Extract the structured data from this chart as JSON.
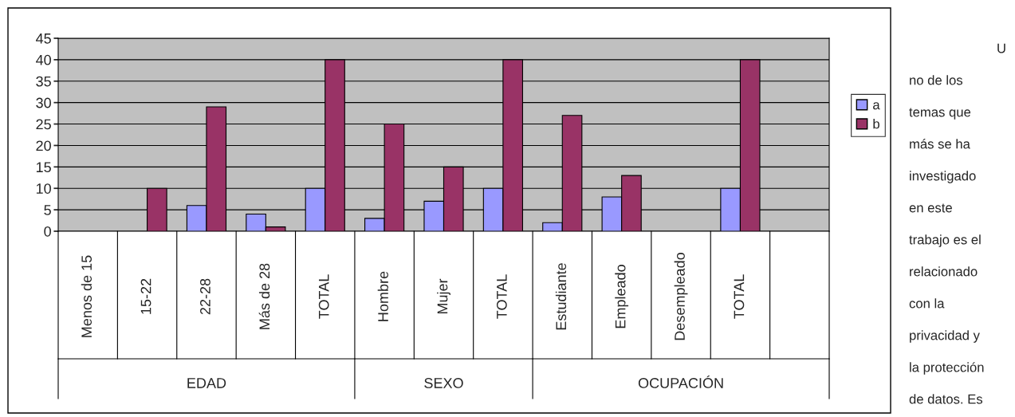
{
  "chart_data": {
    "type": "bar",
    "categories": [
      "Menos de 15",
      "15-22",
      "22-28",
      "Más de 28",
      "TOTAL",
      "Hombre",
      "Mujer",
      "TOTAL",
      "Estudiante",
      "Empleado",
      "Desempleado",
      "TOTAL",
      null
    ],
    "series": [
      {
        "name": "a",
        "color": "#9999ff",
        "values": [
          null,
          null,
          6,
          4,
          10,
          3,
          7,
          10,
          2,
          8,
          null,
          10,
          null
        ]
      },
      {
        "name": "b",
        "color": "#993366",
        "values": [
          null,
          10,
          29,
          1,
          40,
          25,
          15,
          40,
          27,
          13,
          null,
          40,
          null
        ]
      }
    ],
    "ylim": [
      0,
      45
    ],
    "yticks": [
      0,
      5,
      10,
      15,
      20,
      25,
      30,
      35,
      40,
      45
    ],
    "grid": "y",
    "legend": "right",
    "annotations": [
      "EDAD",
      "SEXO",
      "OCUPACIÓN",
      "U",
      "no de los",
      "temas que",
      "más se ha",
      "investigado",
      "en este",
      "trabajo es el",
      "relacionado",
      "con la",
      "privacidad y",
      "la protección",
      "de datos. Es"
    ]
  }
}
